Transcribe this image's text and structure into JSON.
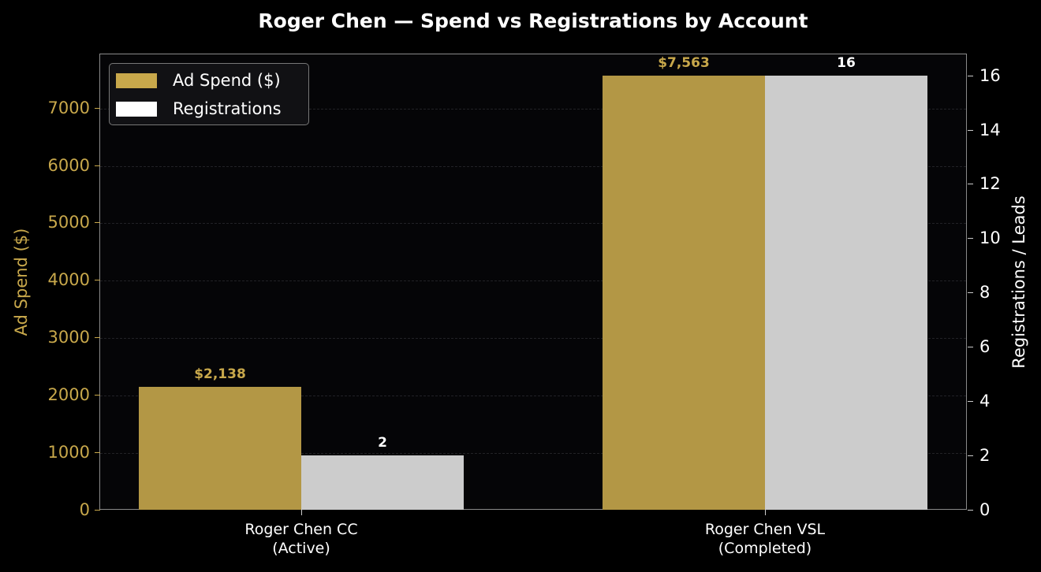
{
  "chart_data": {
    "type": "bar",
    "title": "Roger Chen — Spend vs Registrations by Account",
    "categories": [
      "Roger Chen CC\n(Active)",
      "Roger Chen VSL\n(Completed)"
    ],
    "category_lines": [
      [
        "Roger Chen CC",
        "(Active)"
      ],
      [
        "Roger Chen VSL",
        "(Completed)"
      ]
    ],
    "series": [
      {
        "name": "Ad Spend ($)",
        "axis": "left",
        "color": "#b39745",
        "legend_color": "#c8a84b",
        "values": [
          2138,
          7563
        ],
        "labels": [
          "$2,138",
          "$7,563"
        ],
        "label_color": "#c8a84b"
      },
      {
        "name": "Registrations",
        "axis": "right",
        "color": "#cccccc",
        "legend_color": "#ffffff",
        "values": [
          2,
          16
        ],
        "labels": [
          "2",
          "16"
        ],
        "label_color": "#ffffff"
      }
    ],
    "xlabel": "",
    "ylabel": "Ad Spend ($)",
    "ylabel_right": "Registrations / Leads",
    "ylim": [
      0,
      7941
    ],
    "ylim_right": [
      0,
      16.8
    ],
    "yticks": [
      0,
      1000,
      2000,
      3000,
      4000,
      5000,
      6000,
      7000
    ],
    "yticks_right": [
      0,
      2,
      4,
      6,
      8,
      10,
      12,
      14,
      16
    ],
    "grid": true,
    "legend_position": "upper left"
  },
  "legend": {
    "items": [
      {
        "label": "Ad Spend ($)",
        "color": "#c8a84b"
      },
      {
        "label": "Registrations",
        "color": "#ffffff"
      }
    ]
  }
}
